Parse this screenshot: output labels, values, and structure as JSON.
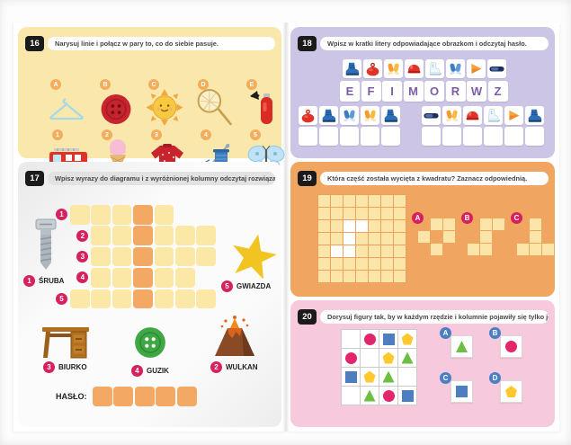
{
  "sections": {
    "ex16": {
      "number": "16",
      "instruction": "Narysuj linie i połącz w pary to, co do siebie pasuje.",
      "top_items": [
        {
          "label": "A",
          "icon": "hanger-icon"
        },
        {
          "label": "B",
          "icon": "red-button-icon"
        },
        {
          "label": "C",
          "icon": "sun-icon"
        },
        {
          "label": "D",
          "icon": "butterfly-net-icon"
        },
        {
          "label": "E",
          "icon": "fire-extinguisher-icon"
        }
      ],
      "bottom_items": [
        {
          "label": "1",
          "icon": "fire-truck-icon"
        },
        {
          "label": "2",
          "icon": "ice-cream-icon"
        },
        {
          "label": "3",
          "icon": "sweater-icon"
        },
        {
          "label": "4",
          "icon": "needle-thread-icon"
        },
        {
          "label": "5",
          "icon": "butterfly-icon"
        }
      ]
    },
    "ex17": {
      "number": "17",
      "instruction": "Wpisz wyrazy do diagramu i z wyróżnionej kolumny odczytaj rozwiązanie.",
      "grid": {
        "columns": 7,
        "highlight_col": 4,
        "rows": [
          {
            "num": "1",
            "start": 1,
            "end": 5
          },
          {
            "num": "2",
            "start": 2,
            "end": 7
          },
          {
            "num": "3",
            "start": 2,
            "end": 7
          },
          {
            "num": "4",
            "start": 2,
            "end": 6
          },
          {
            "num": "5",
            "start": 1,
            "end": 7
          }
        ]
      },
      "clues": [
        {
          "num": "1",
          "label": "ŚRUBA",
          "icon": "screw-icon"
        },
        {
          "num": "5",
          "label": "GWIAZDA",
          "icon": "star-icon"
        },
        {
          "num": "3",
          "label": "BIURKO",
          "icon": "desk-icon"
        },
        {
          "num": "4",
          "label": "GUZIK",
          "icon": "green-button-icon"
        },
        {
          "num": "2",
          "label": "WULKAN",
          "icon": "volcano-icon"
        }
      ],
      "password_label": "HASŁO:",
      "password_cells": 5
    },
    "ex18": {
      "number": "18",
      "instruction": "Wpisz w kratki litery odpowiadające obrazkom i odczytaj hasło.",
      "key": [
        {
          "letter": "E",
          "icon": "ski-boot-icon"
        },
        {
          "letter": "F",
          "icon": "sled-icon"
        },
        {
          "letter": "I",
          "icon": "orange-mittens-icon"
        },
        {
          "letter": "M",
          "icon": "helmet-icon"
        },
        {
          "letter": "O",
          "icon": "ice-skate-icon"
        },
        {
          "letter": "R",
          "icon": "blue-gloves-icon"
        },
        {
          "letter": "W",
          "icon": "orange-triangle-icon"
        },
        {
          "letter": "Z",
          "icon": "goggles-icon"
        }
      ],
      "group1_icons": [
        "sled-icon",
        "ski-boot-icon",
        "blue-gloves-icon",
        "orange-mittens-icon",
        "ski-boot-icon"
      ],
      "group2_icons": [
        "goggles-icon",
        "orange-mittens-icon",
        "helmet-icon",
        "ice-skate-icon",
        "orange-triangle-icon",
        "ski-boot-icon"
      ]
    },
    "ex19": {
      "number": "19",
      "instruction": "Która część została wycięta z kwadratu? Zaznacz odpowiednią.",
      "grid": {
        "size": 7,
        "cutout_cells": [
          [
            3,
            3
          ],
          [
            3,
            4
          ],
          [
            4,
            3
          ],
          [
            5,
            2
          ],
          [
            5,
            3
          ]
        ]
      },
      "options": [
        {
          "label": "A",
          "cells": [
            [
              1,
              2
            ],
            [
              1,
              3
            ],
            [
              2,
              1
            ],
            [
              2,
              3
            ],
            [
              3,
              2
            ]
          ]
        },
        {
          "label": "B",
          "cells": [
            [
              1,
              2
            ],
            [
              1,
              3
            ],
            [
              2,
              2
            ],
            [
              3,
              1
            ],
            [
              3,
              2
            ]
          ]
        },
        {
          "label": "C",
          "cells": [
            [
              1,
              2
            ],
            [
              2,
              2
            ],
            [
              3,
              1
            ],
            [
              3,
              2
            ],
            [
              3,
              3
            ]
          ]
        }
      ]
    },
    "ex20": {
      "number": "20",
      "instruction": "Dorysuj figury tak, by w każdym rzędzie i kolumnie pojawiły się tylko jeden raz.",
      "grid": [
        [
          "",
          "circle",
          "square",
          "pentagon"
        ],
        [
          "circle",
          "",
          "pentagon",
          "triangle"
        ],
        [
          "square",
          "pentagon",
          "triangle",
          ""
        ],
        [
          "",
          "triangle",
          "circle",
          "square"
        ]
      ],
      "options": [
        {
          "label": "A",
          "shape": "triangle"
        },
        {
          "label": "B",
          "shape": "circle"
        },
        {
          "label": "C",
          "shape": "square"
        },
        {
          "label": "D",
          "shape": "pentagon"
        }
      ]
    }
  },
  "colors": {
    "section16_bg": "#fae7ac",
    "section18_bg": "#cdc5e6",
    "section19_bg": "#f0a561",
    "section20_bg": "#f6c9dc",
    "badge_black": "#1b1b1b",
    "badge_orange": "#f2ae5d",
    "badge_magenta": "#d6215e",
    "badge_blue": "#4a7fc1",
    "crossword_cell": "#fce8a6",
    "crossword_highlight": "#f3a964",
    "letter_purple": "#7c5ca8",
    "shape_circle": "#e3256b",
    "shape_square": "#4d7ebf",
    "shape_triangle": "#6cbe45",
    "shape_pentagon": "#ffc82e"
  }
}
